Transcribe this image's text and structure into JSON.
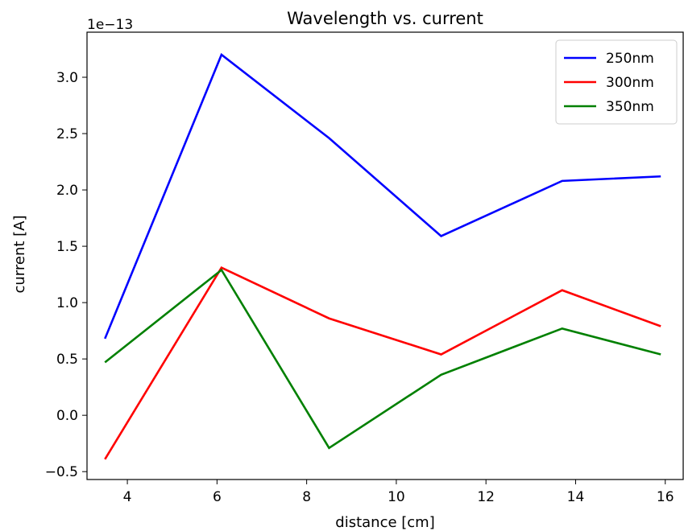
{
  "chart_data": {
    "type": "line",
    "title": "Wavelength vs. current",
    "xlabel": "distance [cm]",
    "ylabel": "current [A]",
    "y_offset_label": "1e−13",
    "y_scale": 1e-13,
    "xlim": [
      3.1,
      16.4
    ],
    "ylim": [
      -0.57,
      3.4
    ],
    "x_ticks": [
      4,
      6,
      8,
      10,
      12,
      14,
      16
    ],
    "x_tick_labels": [
      "4",
      "6",
      "8",
      "10",
      "12",
      "14",
      "16"
    ],
    "y_ticks": [
      -0.5,
      0.0,
      0.5,
      1.0,
      1.5,
      2.0,
      2.5,
      3.0
    ],
    "y_tick_labels": [
      "−0.5",
      "0.0",
      "0.5",
      "1.0",
      "1.5",
      "2.0",
      "2.5",
      "3.0"
    ],
    "grid": false,
    "legend_position": "top-right",
    "x": [
      3.5,
      6.1,
      8.5,
      11.0,
      13.7,
      15.9
    ],
    "series": [
      {
        "name": "250nm",
        "color": "#0000ff",
        "values": [
          0.68,
          3.2,
          2.46,
          1.59,
          2.08,
          2.12
        ]
      },
      {
        "name": "300nm",
        "color": "#ff0000",
        "values": [
          -0.39,
          1.31,
          0.86,
          0.54,
          1.11,
          0.79
        ]
      },
      {
        "name": "350nm",
        "color": "#008000",
        "values": [
          0.47,
          1.29,
          -0.29,
          0.36,
          0.77,
          0.54
        ]
      }
    ]
  }
}
